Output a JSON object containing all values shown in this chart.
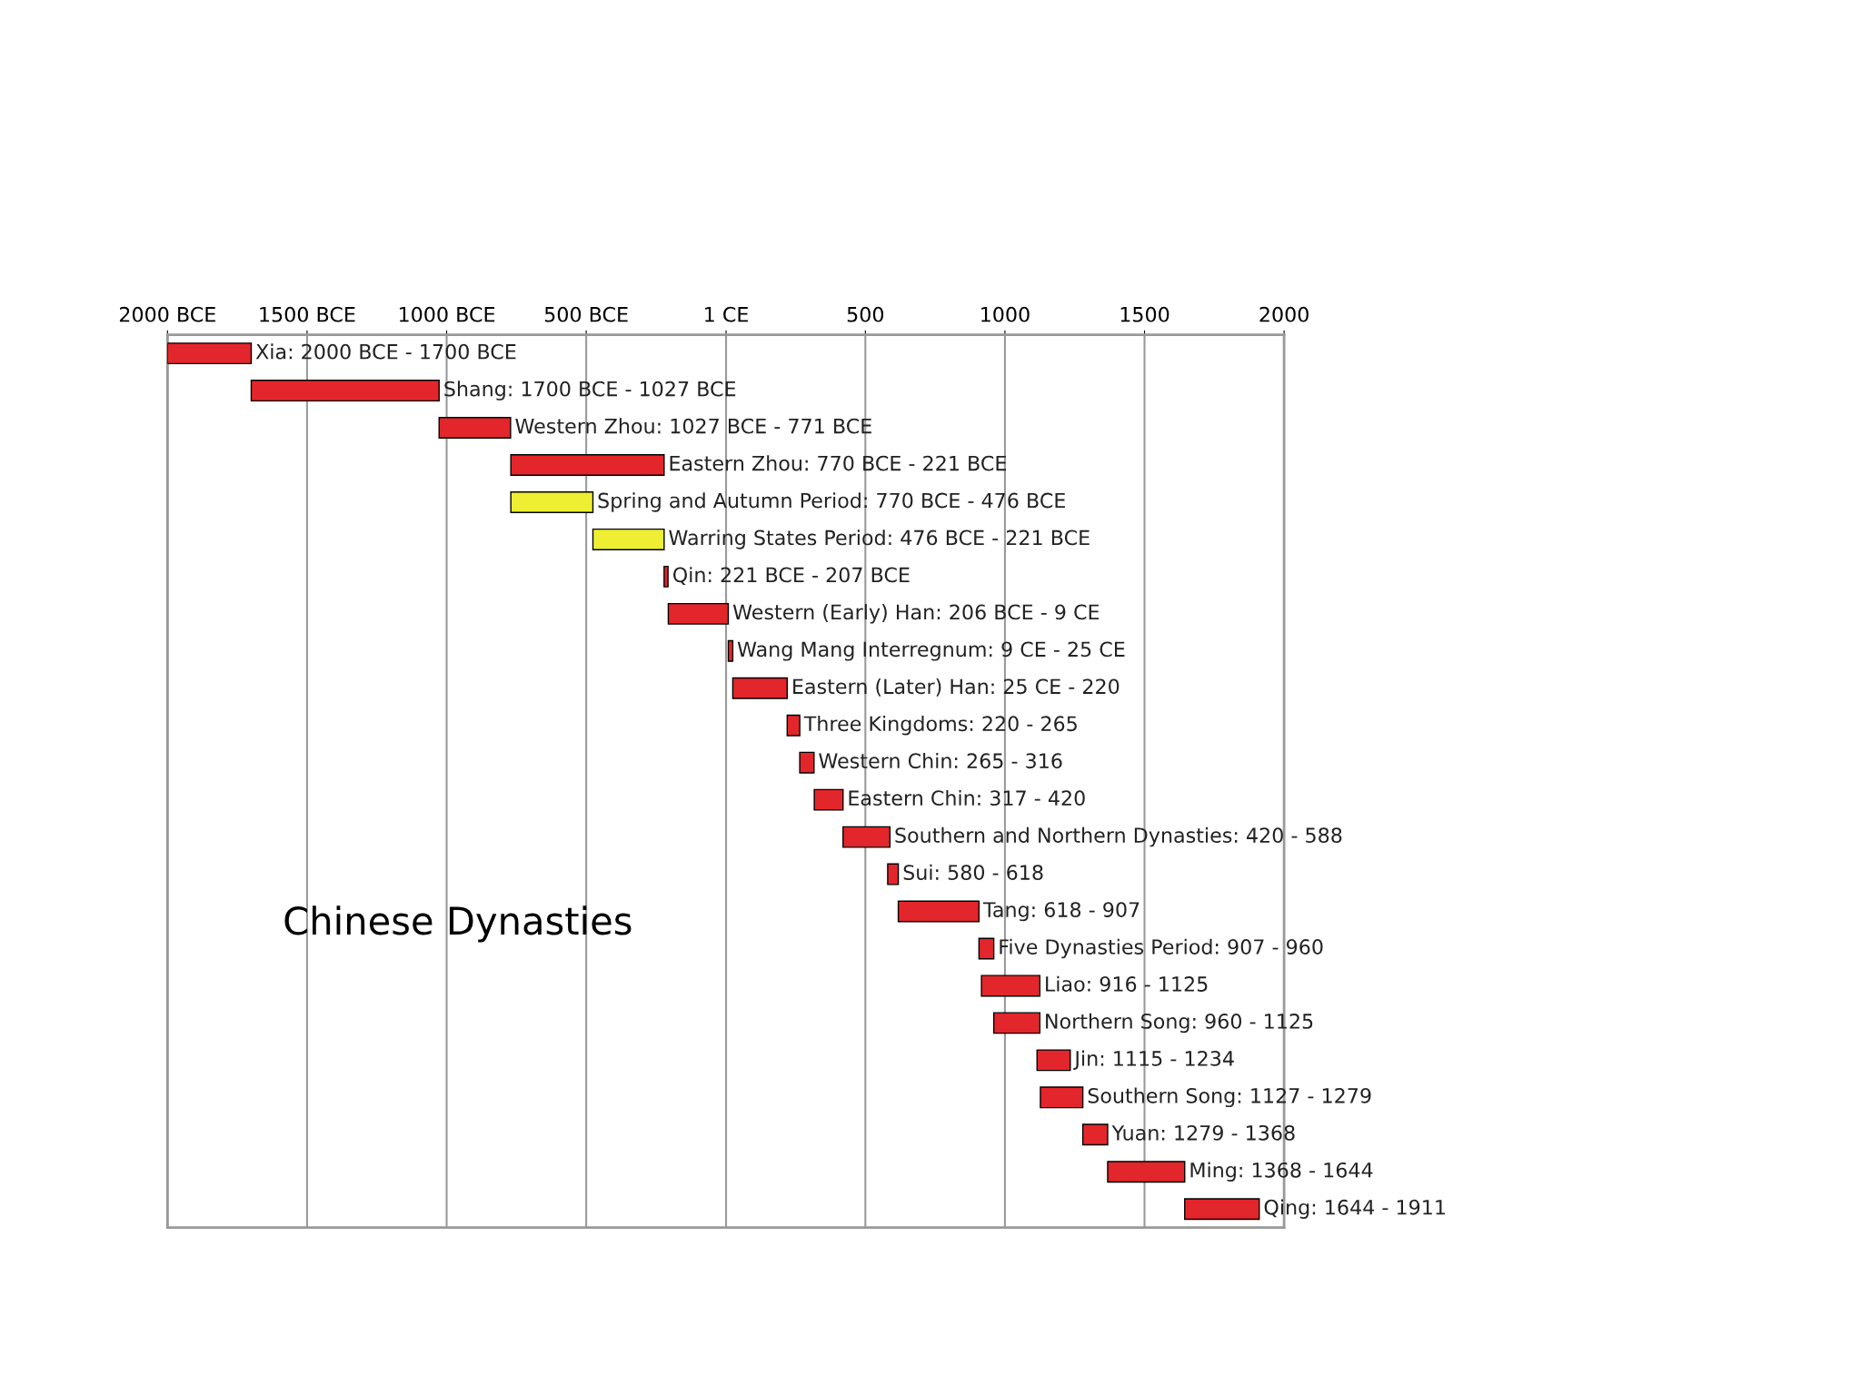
{
  "chart_data": {
    "type": "bar",
    "orientation": "horizontal",
    "title": "Chinese Dynasties",
    "categories": [
      null,
      null,
      null,
      null,
      null,
      null,
      null,
      null,
      null,
      null,
      null,
      null,
      null,
      null,
      null,
      null,
      null,
      null,
      null,
      null,
      null,
      null,
      null,
      null
    ],
    "value_labels": [
      "Xia: 2000 BCE - 1700 BCE",
      "Shang: 1700 BCE - 1027 BCE",
      "Western Zhou: 1027 BCE - 771 BCE",
      "Eastern Zhou: 770 BCE - 221 BCE",
      "Spring and Autumn Period: 770 BCE - 476 BCE",
      "Warring States Period: 476 BCE - 221 BCE",
      "Qin: 221 BCE - 207 BCE",
      "Western (Early) Han: 206 BCE - 9 CE",
      "Wang Mang Interregnum: 9 CE - 25 CE",
      "Eastern (Later) Han: 25 CE - 220",
      "Three Kingdoms: 220 - 265",
      "Western Chin: 265 - 316",
      "Eastern Chin: 317 - 420",
      "Southern and Northern Dynasties: 420 - 588",
      "Sui: 580 - 618",
      "Tang: 618 - 907",
      "Five Dynasties Period: 907 - 960",
      "Liao: 916 - 1125",
      "Northern Song: 960 - 1125",
      "Jin: 1115 - 1234",
      "Southern Song: 1127 - 1279",
      "Yuan: 1279 - 1368",
      "Ming: 1368 - 1644",
      "Qing: 1644 - 1911"
    ],
    "base": [
      -2000,
      -1700,
      -1027,
      -770,
      -770,
      -476,
      -221,
      -206,
      9,
      25,
      220,
      265,
      317,
      420,
      580,
      618,
      907,
      916,
      960,
      1115,
      1127,
      1279,
      1368,
      1644
    ],
    "values": [
      300,
      673,
      256,
      549,
      294,
      255,
      14,
      215,
      16,
      195,
      45,
      51,
      103,
      168,
      38,
      289,
      53,
      209,
      165,
      119,
      152,
      89,
      276,
      267
    ],
    "colors": [
      "#e3262b",
      "#e3262b",
      "#e3262b",
      "#e3262b",
      "#eeee33",
      "#eeee33",
      "#e3262b",
      "#e3262b",
      "#e3262b",
      "#e3262b",
      "#e3262b",
      "#e3262b",
      "#e3262b",
      "#e3262b",
      "#e3262b",
      "#e3262b",
      "#e3262b",
      "#e3262b",
      "#e3262b",
      "#e3262b",
      "#e3262b",
      "#e3262b",
      "#e3262b",
      "#e3262b"
    ],
    "xlim": [
      -2000,
      2000
    ],
    "xticks": [
      {
        "value": -2000,
        "label": "2000 BCE"
      },
      {
        "value": -1500,
        "label": "1500 BCE"
      },
      {
        "value": -1000,
        "label": "1000 BCE"
      },
      {
        "value": -500,
        "label": "500 BCE"
      },
      {
        "value": 1,
        "label": "1 CE"
      },
      500,
      1000,
      1500,
      2000
    ],
    "grid": "x"
  }
}
